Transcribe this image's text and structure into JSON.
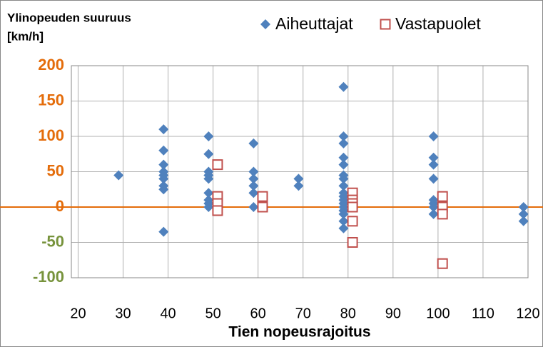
{
  "chart_data": {
    "type": "scatter",
    "ylabel": [
      "Ylinopeuden suuruus",
      "[km/h]"
    ],
    "xlabel": "Tien nopeusrajoitus",
    "xlim": [
      18.5,
      120
    ],
    "xticks": [
      20,
      30,
      40,
      50,
      60,
      70,
      80,
      90,
      100,
      110,
      120
    ],
    "ylim": [
      -100,
      200
    ],
    "yticks": [
      -100,
      -50,
      0,
      50,
      100,
      150,
      200
    ],
    "grid": true,
    "legend": "top-right",
    "zero_line_color": "#e46c0a",
    "series": [
      {
        "name": "Aiheuttajat",
        "color": "#4f81bd",
        "marker": "diamond",
        "x": [
          29,
          39,
          39,
          39,
          39,
          39,
          39,
          39,
          39,
          39,
          49,
          49,
          49,
          49,
          49,
          49,
          49,
          49,
          49,
          59,
          59,
          59,
          59,
          59,
          59,
          69,
          69,
          79,
          79,
          79,
          79,
          79,
          79,
          79,
          79,
          79,
          79,
          79,
          79,
          79,
          79,
          79,
          79,
          79,
          99,
          99,
          99,
          99,
          99,
          99,
          99,
          99,
          119,
          119,
          119
        ],
        "values": [
          45,
          110,
          80,
          60,
          50,
          45,
          40,
          30,
          25,
          -35,
          100,
          75,
          50,
          45,
          40,
          20,
          10,
          5,
          0,
          90,
          50,
          40,
          30,
          20,
          0,
          40,
          30,
          170,
          100,
          90,
          70,
          60,
          45,
          40,
          30,
          20,
          15,
          10,
          5,
          0,
          -5,
          -10,
          -20,
          -30,
          100,
          70,
          60,
          40,
          10,
          5,
          0,
          -10,
          0,
          -10,
          -20
        ]
      },
      {
        "name": "Vastapuolet",
        "color": "#c0504d",
        "marker": "square",
        "x": [
          51,
          51,
          51,
          51,
          61,
          61,
          81,
          81,
          81,
          81,
          81,
          81,
          101,
          101,
          101,
          101
        ],
        "values": [
          60,
          15,
          5,
          -5,
          15,
          0,
          20,
          10,
          5,
          0,
          -20,
          -50,
          15,
          0,
          -10,
          -80
        ]
      }
    ]
  }
}
